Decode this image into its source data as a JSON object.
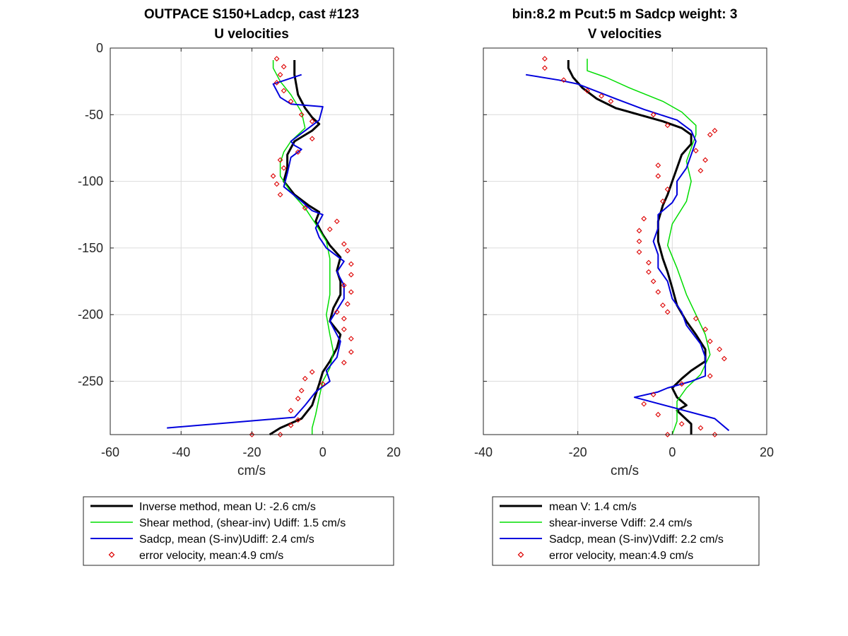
{
  "chart_data": [
    {
      "type": "line",
      "title": "OUTPACE S150+Ladcp, cast #123",
      "subtitle": "U velocities",
      "xlabel": "cm/s",
      "ylabel": "",
      "xlim": [
        -60,
        20
      ],
      "ylim": [
        -290,
        0
      ],
      "x_ticks": [
        -60,
        -40,
        -20,
        0,
        20
      ],
      "y_ticks": [
        0,
        -50,
        -100,
        -150,
        -200,
        -250
      ],
      "x_tick_labels": [
        "-60",
        "-40",
        "-20",
        "0",
        "20"
      ],
      "y_tick_labels": [
        "0",
        "-50",
        "-100",
        "-150",
        "-200",
        "-250"
      ],
      "grid": true,
      "legend_placement": "below",
      "series": [
        {
          "name": "Inverse method, mean U:  -2.6 cm/s",
          "kind": "line",
          "color": "#000000",
          "values": [
            [
              -8,
              -9
            ],
            [
              -8,
              -20
            ],
            [
              -7,
              -35
            ],
            [
              -5,
              -45
            ],
            [
              -3,
              -52
            ],
            [
              -1,
              -57
            ],
            [
              -3,
              -62
            ],
            [
              -8,
              -70
            ],
            [
              -10,
              -80
            ],
            [
              -10,
              -90
            ],
            [
              -11,
              -100
            ],
            [
              -8,
              -110
            ],
            [
              -4,
              -118
            ],
            [
              -1,
              -123
            ],
            [
              -2,
              -130
            ],
            [
              0,
              -140
            ],
            [
              2,
              -148
            ],
            [
              5,
              -157
            ],
            [
              4,
              -167
            ],
            [
              5,
              -175
            ],
            [
              5,
              -185
            ],
            [
              3,
              -195
            ],
            [
              2,
              -205
            ],
            [
              5,
              -215
            ],
            [
              4,
              -225
            ],
            [
              2,
              -235
            ],
            [
              0,
              -243
            ],
            [
              -1,
              -252
            ],
            [
              -2,
              -260
            ],
            [
              -3,
              -268
            ],
            [
              -6,
              -278
            ],
            [
              -12,
              -285
            ],
            [
              -15,
              -290
            ]
          ]
        },
        {
          "name": "Shear method, (shear-inv)  Udiff:  1.5 cm/s",
          "kind": "line",
          "color": "#00dd00",
          "values": [
            [
              -14,
              -9
            ],
            [
              -14,
              -15
            ],
            [
              -12,
              -25
            ],
            [
              -9,
              -35
            ],
            [
              -6,
              -48
            ],
            [
              -5,
              -60
            ],
            [
              -9,
              -70
            ],
            [
              -11,
              -78
            ],
            [
              -12,
              -86
            ],
            [
              -12,
              -96
            ],
            [
              -9,
              -108
            ],
            [
              -5,
              -120
            ],
            [
              -2,
              -132
            ],
            [
              1,
              -145
            ],
            [
              2,
              -158
            ],
            [
              2,
              -172
            ],
            [
              2,
              -185
            ],
            [
              1,
              -200
            ],
            [
              2,
              -215
            ],
            [
              3,
              -228
            ],
            [
              2,
              -240
            ],
            [
              0,
              -250
            ],
            [
              -1,
              -262
            ],
            [
              -2,
              -275
            ],
            [
              -3,
              -285
            ],
            [
              -3,
              -290
            ]
          ]
        },
        {
          "name": "Sadcp, mean (S-inv)Udiff: 2.4 cm/s",
          "kind": "line",
          "color": "#0000dd",
          "values": [
            [
              -6,
              -20
            ],
            [
              -14,
              -27
            ],
            [
              -12,
              -37
            ],
            [
              -9,
              -42
            ],
            [
              0,
              -44
            ],
            [
              -1,
              -54
            ],
            [
              -4,
              -60
            ],
            [
              -9,
              -70
            ],
            [
              -8,
              -73
            ],
            [
              -6,
              -76
            ],
            [
              -9,
              -82
            ],
            [
              -10,
              -94
            ],
            [
              -11,
              -104
            ],
            [
              -6,
              -115
            ],
            [
              -3,
              -122
            ],
            [
              0,
              -125
            ],
            [
              -2,
              -135
            ],
            [
              -1,
              -142
            ],
            [
              1,
              -150
            ],
            [
              6,
              -160
            ],
            [
              4,
              -168
            ],
            [
              6,
              -178
            ],
            [
              6,
              -188
            ],
            [
              2,
              -205
            ],
            [
              5,
              -220
            ],
            [
              4,
              -232
            ],
            [
              1,
              -242
            ],
            [
              2,
              -250
            ],
            [
              -2,
              -258
            ],
            [
              -5,
              -268
            ],
            [
              -8,
              -277
            ],
            [
              -44,
              -285
            ]
          ]
        },
        {
          "name": "error velocity, mean:4.9 cm/s",
          "kind": "marker",
          "color": "#dd0000",
          "values": [
            [
              -13,
              -8
            ],
            [
              -11,
              -14
            ],
            [
              -12,
              -20
            ],
            [
              -13,
              -26
            ],
            [
              -11,
              -32
            ],
            [
              -9,
              -40
            ],
            [
              -6,
              -50
            ],
            [
              -3,
              -55
            ],
            [
              -3,
              -68
            ],
            [
              -7,
              -78
            ],
            [
              -12,
              -84
            ],
            [
              -11,
              -90
            ],
            [
              -14,
              -96
            ],
            [
              -13,
              -102
            ],
            [
              -12,
              -110
            ],
            [
              -5,
              -120
            ],
            [
              4,
              -130
            ],
            [
              2,
              -136
            ],
            [
              6,
              -147
            ],
            [
              7,
              -152
            ],
            [
              8,
              -162
            ],
            [
              8,
              -170
            ],
            [
              6,
              -178
            ],
            [
              8,
              -183
            ],
            [
              7,
              -192
            ],
            [
              4,
              -198
            ],
            [
              6,
              -203
            ],
            [
              6,
              -211
            ],
            [
              8,
              -218
            ],
            [
              8,
              -228
            ],
            [
              6,
              -236
            ],
            [
              -3,
              -243
            ],
            [
              -5,
              -248
            ],
            [
              0,
              -252
            ],
            [
              -6,
              -257
            ],
            [
              -7,
              -263
            ],
            [
              -9,
              -272
            ],
            [
              -7,
              -279
            ],
            [
              -9,
              -283
            ],
            [
              -12,
              -290
            ],
            [
              -20,
              -290
            ]
          ]
        }
      ]
    },
    {
      "type": "line",
      "title": "bin:8.2 m  Pcut:5 m  Sadcp weight: 3",
      "subtitle": "V velocities",
      "xlabel": "cm/s",
      "ylabel": "",
      "xlim": [
        -40,
        20
      ],
      "ylim": [
        -290,
        0
      ],
      "x_ticks": [
        -40,
        -20,
        0,
        20
      ],
      "y_ticks": [
        0,
        -50,
        -100,
        -150,
        -200,
        -250
      ],
      "x_tick_labels": [
        "-40",
        "-20",
        "0",
        "20"
      ],
      "y_tick_labels": [],
      "grid": true,
      "legend_placement": "below",
      "series": [
        {
          "name": "mean V:  1.4 cm/s",
          "kind": "line",
          "color": "#000000",
          "values": [
            [
              -22,
              -9
            ],
            [
              -22,
              -15
            ],
            [
              -21,
              -22
            ],
            [
              -19,
              -30
            ],
            [
              -16,
              -38
            ],
            [
              -12,
              -45
            ],
            [
              -7,
              -50
            ],
            [
              -2,
              -55
            ],
            [
              2,
              -60
            ],
            [
              4,
              -65
            ],
            [
              4,
              -72
            ],
            [
              2,
              -80
            ],
            [
              1,
              -90
            ],
            [
              0,
              -100
            ],
            [
              -1,
              -110
            ],
            [
              -2,
              -118
            ],
            [
              -3,
              -130
            ],
            [
              -3,
              -145
            ],
            [
              -2,
              -158
            ],
            [
              -1,
              -168
            ],
            [
              0,
              -180
            ],
            [
              1,
              -193
            ],
            [
              3,
              -205
            ],
            [
              5,
              -215
            ],
            [
              7,
              -226
            ],
            [
              7,
              -235
            ],
            [
              4,
              -242
            ],
            [
              2,
              -248
            ],
            [
              0,
              -255
            ],
            [
              1,
              -262
            ],
            [
              3,
              -268
            ],
            [
              1,
              -272
            ],
            [
              4,
              -282
            ],
            [
              4,
              -290
            ]
          ]
        },
        {
          "name": "shear-inverse Vdiff:  2.4 cm/s",
          "kind": "line",
          "color": "#00dd00",
          "values": [
            [
              -18,
              -8
            ],
            [
              -18,
              -17
            ],
            [
              -14,
              -22
            ],
            [
              -9,
              -30
            ],
            [
              -2,
              -40
            ],
            [
              2,
              -48
            ],
            [
              5,
              -58
            ],
            [
              5,
              -65
            ],
            [
              4,
              -75
            ],
            [
              3,
              -85
            ],
            [
              4,
              -100
            ],
            [
              3,
              -115
            ],
            [
              0,
              -132
            ],
            [
              -1,
              -148
            ],
            [
              1,
              -165
            ],
            [
              3,
              -185
            ],
            [
              5,
              -200
            ],
            [
              7,
              -215
            ],
            [
              8,
              -230
            ],
            [
              6,
              -245
            ],
            [
              3,
              -255
            ],
            [
              1,
              -265
            ],
            [
              1,
              -280
            ],
            [
              0,
              -290
            ]
          ]
        },
        {
          "name": "Sadcp, mean (S-inv)Vdiff: 2.2 cm/s",
          "kind": "line",
          "color": "#0000dd",
          "values": [
            [
              -31,
              -20
            ],
            [
              -24,
              -24
            ],
            [
              -20,
              -27
            ],
            [
              -12,
              -38
            ],
            [
              -6,
              -46
            ],
            [
              1,
              -54
            ],
            [
              4,
              -62
            ],
            [
              5,
              -70
            ],
            [
              4,
              -80
            ],
            [
              3,
              -90
            ],
            [
              1,
              -100
            ],
            [
              1,
              -110
            ],
            [
              0,
              -116
            ],
            [
              -3,
              -125
            ],
            [
              -3,
              -135
            ],
            [
              -4,
              -145
            ],
            [
              -3,
              -155
            ],
            [
              -3,
              -165
            ],
            [
              -1,
              -175
            ],
            [
              0,
              -188
            ],
            [
              2,
              -198
            ],
            [
              3,
              -208
            ],
            [
              6,
              -222
            ],
            [
              7,
              -232
            ],
            [
              7,
              -246
            ],
            [
              4,
              -250
            ],
            [
              -1,
              -255
            ],
            [
              -3,
              -258
            ],
            [
              -8,
              -262
            ],
            [
              9,
              -278
            ],
            [
              12,
              -287
            ]
          ]
        },
        {
          "name": "error velocity, mean:4.9 cm/s",
          "kind": "marker",
          "color": "#dd0000",
          "values": [
            [
              -27,
              -8
            ],
            [
              -27,
              -15
            ],
            [
              -23,
              -24
            ],
            [
              -18,
              -32
            ],
            [
              -15,
              -36
            ],
            [
              -13,
              -40
            ],
            [
              -4,
              -50
            ],
            [
              -1,
              -58
            ],
            [
              8,
              -65
            ],
            [
              9,
              -62
            ],
            [
              5,
              -77
            ],
            [
              7,
              -84
            ],
            [
              6,
              -92
            ],
            [
              -3,
              -88
            ],
            [
              -3,
              -96
            ],
            [
              -1,
              -106
            ],
            [
              -2,
              -115
            ],
            [
              -6,
              -128
            ],
            [
              -7,
              -137
            ],
            [
              -7,
              -145
            ],
            [
              -7,
              -153
            ],
            [
              -5,
              -161
            ],
            [
              -5,
              -168
            ],
            [
              -4,
              -175
            ],
            [
              -3,
              -183
            ],
            [
              -2,
              -193
            ],
            [
              -1,
              -198
            ],
            [
              5,
              -203
            ],
            [
              7,
              -211
            ],
            [
              8,
              -220
            ],
            [
              10,
              -226
            ],
            [
              11,
              -233
            ],
            [
              8,
              -246
            ],
            [
              2,
              -252
            ],
            [
              -4,
              -260
            ],
            [
              -6,
              -267
            ],
            [
              -3,
              -275
            ],
            [
              2,
              -282
            ],
            [
              6,
              -285
            ],
            [
              -1,
              -290
            ],
            [
              9,
              -290
            ]
          ]
        }
      ]
    }
  ]
}
